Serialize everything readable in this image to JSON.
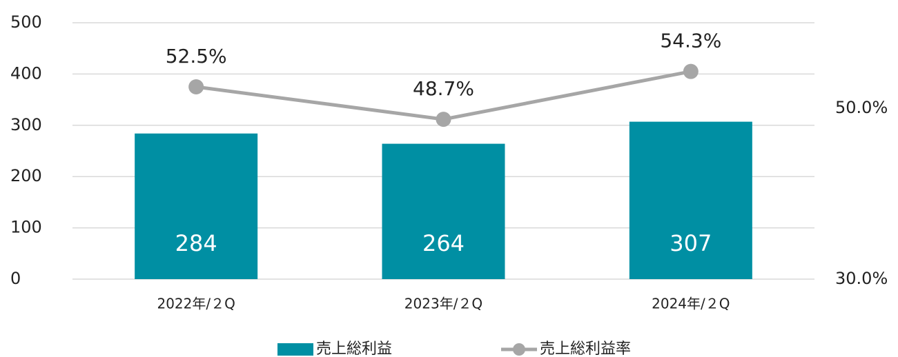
{
  "chart_data": {
    "type": "bar_line",
    "categories": [
      "2022年/２Q",
      "2023年/２Q",
      "2024年/２Q"
    ],
    "series": [
      {
        "name": "売上総利益",
        "type": "bar",
        "color": "#008fa3",
        "values": [
          284,
          264,
          307
        ]
      },
      {
        "name": "売上総利益率",
        "type": "line",
        "axis": "y2",
        "color": "#a6a6a6",
        "values": [
          52.5,
          48.7,
          54.3
        ],
        "value_labels": [
          "52.5%",
          "48.7%",
          "54.3%"
        ]
      }
    ],
    "ylim": [
      0,
      500
    ],
    "yticks": [
      0,
      100,
      200,
      300,
      400,
      500
    ],
    "y2lim": [
      30,
      60
    ],
    "y2ticks": [
      {
        "value": 30,
        "label": "30.0%"
      },
      {
        "value": 50,
        "label": "50.0%"
      }
    ],
    "grid": true,
    "legend": "bottom"
  }
}
